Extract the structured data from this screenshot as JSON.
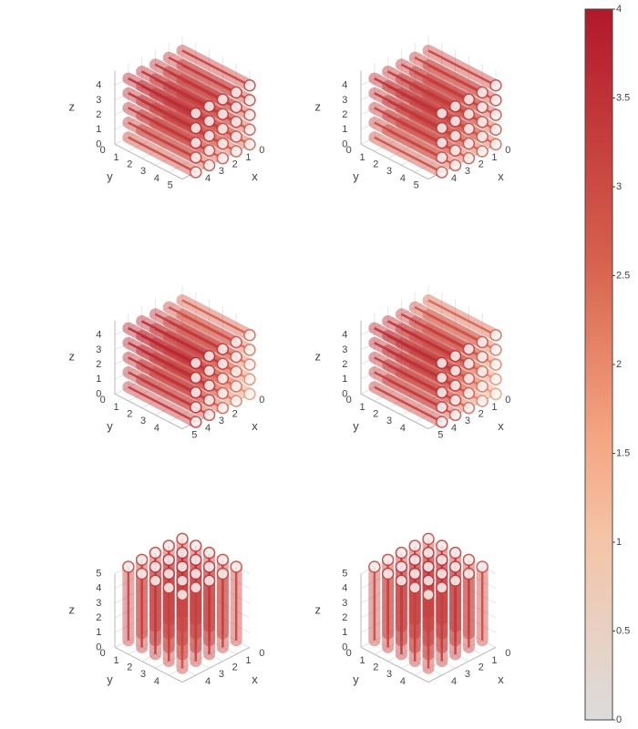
{
  "chart_data": [
    {
      "type": "streamtube",
      "tube_axis": "y",
      "xlabel": "x",
      "ylabel": "y",
      "zlabel": "z",
      "xlim": [
        0,
        5
      ],
      "ylim": [
        0,
        5
      ],
      "zlim": [
        0,
        5
      ],
      "xticks": [
        0,
        1,
        2,
        3,
        4
      ],
      "yticks": [
        0,
        1,
        2,
        3,
        4,
        5
      ],
      "zticks": [
        0,
        1,
        2,
        3,
        4
      ],
      "x": [
        0,
        0,
        0,
        0,
        0,
        1,
        1,
        1,
        1,
        1,
        2,
        2,
        2,
        2,
        2,
        3,
        3,
        3,
        3,
        3,
        4,
        4,
        4,
        4,
        4
      ],
      "z": [
        0,
        1,
        2,
        3,
        4,
        0,
        1,
        2,
        3,
        4,
        0,
        1,
        2,
        3,
        4,
        0,
        1,
        2,
        3,
        4,
        0,
        1,
        2,
        3,
        4
      ],
      "values": [
        2.6,
        2.8,
        3.0,
        3.1,
        3.2,
        2.7,
        2.9,
        3.1,
        3.2,
        3.3,
        2.8,
        3.0,
        3.2,
        3.3,
        3.4,
        2.9,
        3.1,
        3.3,
        3.4,
        3.5,
        3.0,
        3.2,
        3.4,
        3.5,
        3.6
      ]
    },
    {
      "type": "streamtube",
      "tube_axis": "y",
      "xlabel": "x",
      "ylabel": "y",
      "zlabel": "z",
      "xlim": [
        0,
        5
      ],
      "ylim": [
        0,
        5
      ],
      "zlim": [
        0,
        5
      ],
      "xticks": [
        0,
        1,
        2,
        3,
        4
      ],
      "yticks": [
        0,
        1,
        2,
        3,
        4,
        5
      ],
      "zticks": [
        0,
        1,
        2,
        3,
        4
      ],
      "x": [
        0,
        0,
        0,
        0,
        0,
        1,
        1,
        1,
        1,
        1,
        2,
        2,
        2,
        2,
        2,
        3,
        3,
        3,
        3,
        3,
        4,
        4,
        4,
        4,
        4
      ],
      "z": [
        0,
        1,
        2,
        3,
        4,
        0,
        1,
        2,
        3,
        4,
        0,
        1,
        2,
        3,
        4,
        0,
        1,
        2,
        3,
        4,
        0,
        1,
        2,
        3,
        4
      ],
      "values": [
        2.5,
        2.7,
        2.9,
        3.0,
        3.1,
        2.6,
        2.8,
        3.0,
        3.1,
        3.2,
        2.7,
        2.9,
        3.1,
        3.2,
        3.3,
        2.8,
        3.0,
        3.2,
        3.3,
        3.4,
        2.9,
        3.1,
        3.3,
        3.4,
        3.5
      ]
    },
    {
      "type": "streamtube",
      "tube_axis": "y",
      "xlabel": "x",
      "ylabel": "y",
      "zlabel": "z",
      "xlim": [
        0,
        5
      ],
      "ylim": [
        0,
        5
      ],
      "zlim": [
        0,
        5
      ],
      "xticks": [
        0,
        2,
        3,
        4,
        5
      ],
      "yticks": [
        0,
        1,
        2,
        3,
        4
      ],
      "zticks": [
        0,
        1,
        2,
        3,
        4
      ],
      "x": [
        0,
        0,
        0,
        0,
        0,
        1,
        1,
        1,
        1,
        1,
        2,
        2,
        2,
        2,
        2,
        3,
        3,
        3,
        3,
        3,
        4,
        4,
        4,
        4,
        4
      ],
      "z": [
        0,
        1,
        2,
        3,
        4,
        0,
        1,
        2,
        3,
        4,
        0,
        1,
        2,
        3,
        4,
        0,
        1,
        2,
        3,
        4,
        0,
        1,
        2,
        3,
        4
      ],
      "values": [
        1.8,
        2.0,
        2.2,
        2.4,
        2.6,
        2.2,
        2.4,
        2.6,
        2.8,
        3.0,
        2.6,
        2.8,
        3.0,
        3.2,
        3.4,
        3.0,
        3.2,
        3.4,
        3.5,
        3.6,
        3.3,
        3.4,
        3.5,
        3.6,
        3.7
      ]
    },
    {
      "type": "streamtube",
      "tube_axis": "y",
      "xlabel": "x",
      "ylabel": "y",
      "zlabel": "z",
      "xlim": [
        0,
        5
      ],
      "ylim": [
        0,
        5
      ],
      "zlim": [
        0,
        5
      ],
      "xticks": [
        0,
        1,
        2,
        3,
        4,
        5
      ],
      "yticks": [
        0,
        1,
        2,
        3,
        4
      ],
      "zticks": [
        0,
        1,
        2,
        3,
        4
      ],
      "x": [
        0,
        0,
        0,
        0,
        0,
        1,
        1,
        1,
        1,
        1,
        2,
        2,
        2,
        2,
        2,
        3,
        3,
        3,
        3,
        3,
        4,
        4,
        4,
        4,
        4
      ],
      "z": [
        0,
        1,
        2,
        3,
        4,
        0,
        1,
        2,
        3,
        4,
        0,
        1,
        2,
        3,
        4,
        0,
        1,
        2,
        3,
        4,
        0,
        1,
        2,
        3,
        4
      ],
      "values": [
        1.7,
        1.9,
        2.1,
        2.3,
        2.5,
        2.1,
        2.3,
        2.5,
        2.7,
        2.9,
        2.5,
        2.7,
        2.9,
        3.1,
        3.3,
        2.9,
        3.1,
        3.3,
        3.4,
        3.5,
        3.2,
        3.3,
        3.4,
        3.5,
        3.6
      ]
    },
    {
      "type": "streamtube",
      "tube_axis": "z",
      "xlabel": "x",
      "ylabel": "y",
      "zlabel": "z",
      "xlim": [
        0,
        5
      ],
      "ylim": [
        0,
        5
      ],
      "zlim": [
        0,
        5
      ],
      "xticks": [
        0,
        1,
        2,
        3,
        4
      ],
      "yticks": [
        0,
        1,
        2,
        3,
        4
      ],
      "zticks": [
        0,
        1,
        2,
        3,
        4,
        5
      ],
      "x": [
        0,
        0,
        0,
        0,
        0,
        1,
        1,
        1,
        1,
        1,
        2,
        2,
        2,
        2,
        2,
        3,
        3,
        3,
        3,
        3,
        4,
        4,
        4,
        4,
        4
      ],
      "y": [
        0,
        1,
        2,
        3,
        4,
        0,
        1,
        2,
        3,
        4,
        0,
        1,
        2,
        3,
        4,
        0,
        1,
        2,
        3,
        4,
        0,
        1,
        2,
        3,
        4
      ],
      "values": [
        3.2,
        3.3,
        3.3,
        3.2,
        3.1,
        3.3,
        3.5,
        3.5,
        3.4,
        3.2,
        3.3,
        3.5,
        3.6,
        3.5,
        3.3,
        3.2,
        3.4,
        3.5,
        3.4,
        3.2,
        3.1,
        3.2,
        3.3,
        3.2,
        3.0
      ]
    },
    {
      "type": "streamtube",
      "tube_axis": "z",
      "xlabel": "x",
      "ylabel": "y",
      "zlabel": "z",
      "xlim": [
        0,
        5
      ],
      "ylim": [
        0,
        5
      ],
      "zlim": [
        0,
        5
      ],
      "xticks": [
        0,
        1,
        2,
        3,
        4
      ],
      "yticks": [
        0,
        1,
        2,
        3,
        4
      ],
      "zticks": [
        0,
        1,
        2,
        3,
        4,
        5
      ],
      "x": [
        0,
        0,
        0,
        0,
        0,
        1,
        1,
        1,
        1,
        1,
        2,
        2,
        2,
        2,
        2,
        3,
        3,
        3,
        3,
        3,
        4,
        4,
        4,
        4,
        4
      ],
      "y": [
        0,
        1,
        2,
        3,
        4,
        0,
        1,
        2,
        3,
        4,
        0,
        1,
        2,
        3,
        4,
        0,
        1,
        2,
        3,
        4,
        0,
        1,
        2,
        3,
        4
      ],
      "values": [
        3.1,
        3.2,
        3.3,
        3.2,
        3.0,
        3.2,
        3.4,
        3.5,
        3.4,
        3.2,
        3.3,
        3.5,
        3.6,
        3.5,
        3.3,
        3.2,
        3.4,
        3.5,
        3.4,
        3.2,
        3.0,
        3.2,
        3.3,
        3.2,
        3.1
      ]
    }
  ],
  "colorbar": {
    "clim": [
      0,
      4
    ],
    "ticks": [
      0,
      0.5,
      1,
      1.5,
      2,
      2.5,
      3,
      3.5,
      4
    ],
    "colorscale": [
      [
        0,
        "#dcdcdc"
      ],
      [
        0.25,
        "#f4c5a8"
      ],
      [
        0.4,
        "#f4a582"
      ],
      [
        0.65,
        "#d6604d"
      ],
      [
        1,
        "#b2182b"
      ]
    ]
  }
}
